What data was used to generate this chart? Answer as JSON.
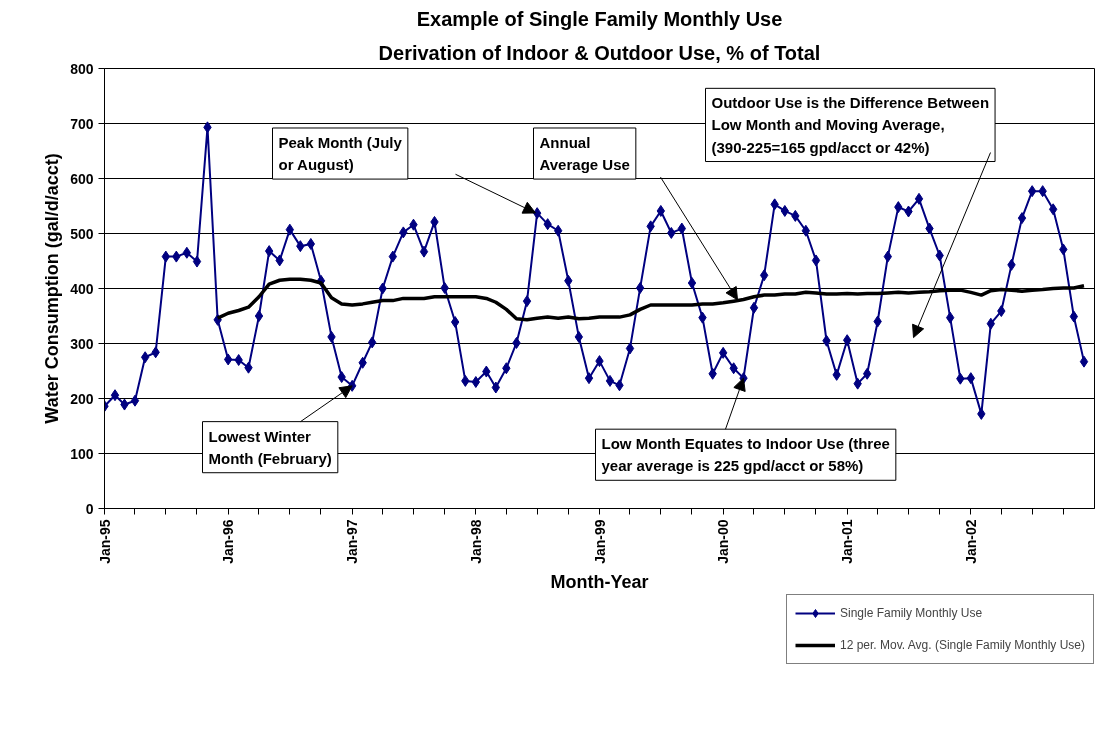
{
  "chart_data": {
    "type": "line",
    "title": "Example of Single Family Monthly Use",
    "subtitle": "Derivation of Indoor & Outdoor Use, % of Total",
    "xlabel": "Month-Year",
    "ylabel": "Water Consumption (gal/d/acct)",
    "x": [
      "1995-01",
      "1995-02",
      "1995-03",
      "1995-04",
      "1995-05",
      "1995-06",
      "1995-07",
      "1995-08",
      "1995-09",
      "1995-10",
      "1995-11",
      "1995-12",
      "1996-01",
      "1996-02",
      "1996-03",
      "1996-04",
      "1996-05",
      "1996-06",
      "1996-07",
      "1996-08",
      "1996-09",
      "1996-10",
      "1996-11",
      "1996-12",
      "1997-01",
      "1997-02",
      "1997-03",
      "1997-04",
      "1997-05",
      "1997-06",
      "1997-07",
      "1997-08",
      "1997-09",
      "1997-10",
      "1997-11",
      "1997-12",
      "1998-01",
      "1998-02",
      "1998-03",
      "1998-04",
      "1998-05",
      "1998-06",
      "1998-07",
      "1998-08",
      "1998-09",
      "1998-10",
      "1998-11",
      "1998-12",
      "1999-01",
      "1999-02",
      "1999-03",
      "1999-04",
      "1999-05",
      "1999-06",
      "1999-07",
      "1999-08",
      "1999-09",
      "1999-10",
      "1999-11",
      "1999-12",
      "2000-01",
      "2000-02",
      "2000-03",
      "2000-04",
      "2000-05",
      "2000-06",
      "2000-07",
      "2000-08",
      "2000-09",
      "2000-10",
      "2000-11",
      "2000-12",
      "2001-01",
      "2001-02",
      "2001-03",
      "2001-04",
      "2001-05",
      "2001-06",
      "2001-07",
      "2001-08",
      "2001-09",
      "2001-10",
      "2001-11",
      "2001-12",
      "2002-01",
      "2002-02",
      "2002-03",
      "2002-04",
      "2002-05",
      "2002-06",
      "2002-07",
      "2002-08",
      "2002-09",
      "2002-10",
      "2002-11",
      "2002-12"
    ],
    "series": [
      {
        "name": "Single Family Monthly Use",
        "color": "#000080",
        "marker": "diamond",
        "values": [
          186,
          206,
          189,
          196,
          275,
          284,
          458,
          458,
          465,
          449,
          693,
          343,
          271,
          270,
          256,
          350,
          468,
          451,
          507,
          477,
          481,
          414,
          312,
          239,
          223,
          265,
          302,
          400,
          458,
          502,
          516,
          467,
          521,
          401,
          339,
          232,
          230,
          249,
          220,
          255,
          301,
          377,
          537,
          517,
          505,
          414,
          312,
          237,
          268,
          232,
          224,
          291,
          401,
          513,
          541,
          501,
          509,
          410,
          347,
          245,
          283,
          255,
          237,
          365,
          424,
          553,
          541,
          532,
          505,
          451,
          305,
          243,
          306,
          227,
          245,
          340,
          458,
          548,
          540,
          563,
          509,
          460,
          347,
          236,
          237,
          172,
          336,
          359,
          443,
          528,
          577,
          577,
          544,
          471,
          349,
          267
        ]
      },
      {
        "name": "12 per. Mov. Avg. (Single Family Monthly Use)",
        "color": "#000000",
        "marker": "none",
        "values": [
          null,
          null,
          null,
          null,
          null,
          null,
          null,
          null,
          null,
          null,
          null,
          346,
          355,
          360,
          366,
          385,
          408,
          415,
          417,
          417,
          415,
          410,
          383,
          372,
          370,
          372,
          375,
          378,
          378,
          382,
          382,
          382,
          385,
          385,
          385,
          385,
          385,
          382,
          375,
          362,
          345,
          343,
          346,
          348,
          346,
          348,
          345,
          346,
          348,
          348,
          348,
          352,
          362,
          370,
          370,
          370,
          370,
          370,
          372,
          372,
          374,
          377,
          380,
          385,
          388,
          388,
          390,
          390,
          393,
          392,
          390,
          390,
          391,
          390,
          391,
          391,
          392,
          393,
          392,
          393,
          394,
          396,
          397,
          397,
          393,
          388,
          396,
          398,
          397,
          395,
          397,
          398,
          400,
          401,
          401,
          405
        ]
      }
    ],
    "xlim": [
      "1995-01",
      "2003-01"
    ],
    "xticks": [
      {
        "value": "1995-01",
        "label": "Jan-95"
      },
      {
        "value": "1995-04",
        "label": null
      },
      {
        "value": "1995-07",
        "label": null
      },
      {
        "value": "1995-10",
        "label": null
      },
      {
        "value": "1996-01",
        "label": "Jan-96"
      },
      {
        "value": "1996-04",
        "label": null
      },
      {
        "value": "1996-07",
        "label": null
      },
      {
        "value": "1996-10",
        "label": null
      },
      {
        "value": "1997-01",
        "label": "Jan-97"
      },
      {
        "value": "1997-04",
        "label": null
      },
      {
        "value": "1997-07",
        "label": null
      },
      {
        "value": "1997-10",
        "label": null
      },
      {
        "value": "1998-01",
        "label": "Jan-98"
      },
      {
        "value": "1998-04",
        "label": null
      },
      {
        "value": "1998-07",
        "label": null
      },
      {
        "value": "1998-10",
        "label": null
      },
      {
        "value": "1999-01",
        "label": "Jan-99"
      },
      {
        "value": "1999-04",
        "label": null
      },
      {
        "value": "1999-07",
        "label": null
      },
      {
        "value": "1999-10",
        "label": null
      },
      {
        "value": "2000-01",
        "label": "Jan-00"
      },
      {
        "value": "2000-04",
        "label": null
      },
      {
        "value": "2000-07",
        "label": null
      },
      {
        "value": "2000-10",
        "label": null
      },
      {
        "value": "2001-01",
        "label": "Jan-01"
      },
      {
        "value": "2001-04",
        "label": null
      },
      {
        "value": "2001-07",
        "label": null
      },
      {
        "value": "2001-10",
        "label": null
      },
      {
        "value": "2002-01",
        "label": "Jan-02"
      },
      {
        "value": "2002-04",
        "label": null
      },
      {
        "value": "2002-07",
        "label": null
      },
      {
        "value": "2002-10",
        "label": null
      }
    ],
    "ylim": [
      0,
      800
    ],
    "yticks": [
      0,
      100,
      200,
      300,
      400,
      500,
      600,
      700,
      800
    ],
    "grid": "y",
    "legend": "bottom right",
    "line_style": "solid",
    "annotations": [
      "Peak Month (July or August)",
      "Annual Average Use",
      {
        "text": "Lowest Winter Month (February)",
        "x": "1997-01",
        "y": 223
      },
      {
        "text": "Low Month Equates to Indoor Use (three year average is 225 gpd/acct or 58%)",
        "x": "2000-03",
        "y": 237
      },
      "Outdoor Use is the Difference Between Low Month and Moving Average, (390-225=165 gpd/acct or 42%)"
    ]
  }
}
